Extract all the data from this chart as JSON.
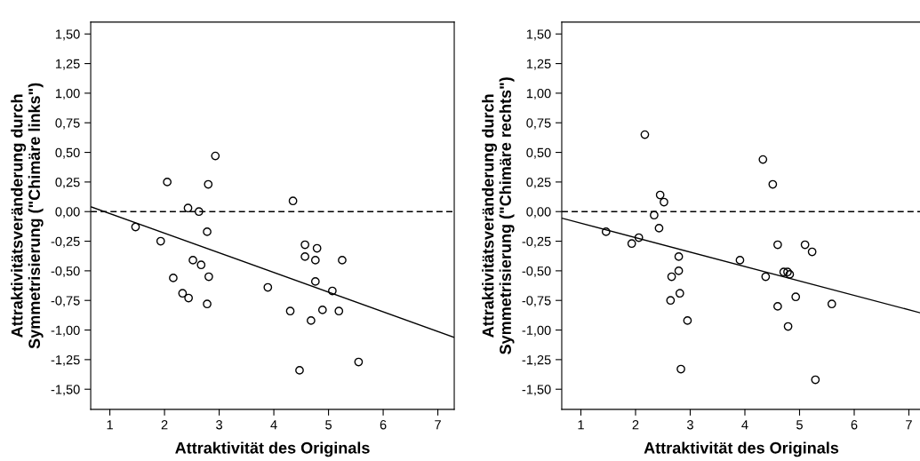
{
  "chart_data": [
    {
      "type": "scatter",
      "xlabel": "Attraktivität des Originals",
      "ylabel": "Attraktivitätsveränderung durch\nSymmetrisierung (\"Chimäre links\")",
      "xlim": [
        0.65,
        7.3
      ],
      "ylim": [
        -1.67,
        1.6
      ],
      "xticks": [
        1,
        2,
        3,
        4,
        5,
        6,
        7
      ],
      "yticks": [
        {
          "value": -1.5,
          "label": "-1,50"
        },
        {
          "value": -1.25,
          "label": "-1,25"
        },
        {
          "value": -1.0,
          "label": "-1,00"
        },
        {
          "value": -0.75,
          "label": "-0,75"
        },
        {
          "value": -0.5,
          "label": "-0,50"
        },
        {
          "value": -0.25,
          "label": "-0,25"
        },
        {
          "value": 0,
          "label": "0,00"
        },
        {
          "value": 0.25,
          "label": "0,25"
        },
        {
          "value": 0.5,
          "label": "0,50"
        },
        {
          "value": 0.75,
          "label": "0,75"
        },
        {
          "value": 1.0,
          "label": "1,00"
        },
        {
          "value": 1.25,
          "label": "1,25"
        },
        {
          "value": 1.5,
          "label": "1,50"
        }
      ],
      "ref_lines": [
        {
          "axis": "y",
          "value": 0,
          "line_style": "dashed",
          "color": "#000000"
        }
      ],
      "series": [
        {
          "color": "#000000",
          "marker": "circle",
          "x": [
            2.93,
            2.05,
            2.8,
            2.43,
            2.63,
            1.47,
            2.78,
            1.93,
            2.52,
            2.67,
            2.16,
            2.81,
            2.33,
            2.44,
            2.78,
            3.89,
            4.35,
            4.57,
            4.79,
            4.57,
            4.76,
            5.25,
            4.76,
            5.07,
            4.3,
            4.89,
            5.19,
            4.68,
            5.55,
            4.47
          ],
          "values": [
            0.47,
            0.25,
            0.23,
            0.03,
            0.0,
            -0.13,
            -0.17,
            -0.25,
            -0.41,
            -0.45,
            -0.56,
            -0.55,
            -0.69,
            -0.73,
            -0.78,
            -0.64,
            0.09,
            -0.28,
            -0.31,
            -0.38,
            -0.41,
            -0.41,
            -0.59,
            -0.67,
            -0.84,
            -0.83,
            -0.84,
            -0.92,
            -1.27,
            -1.34
          ]
        },
        {
          "type": "line",
          "color": "#000000",
          "x": [
            0.66,
            7.29
          ],
          "values": [
            0.04,
            -1.06
          ]
        }
      ]
    },
    {
      "type": "scatter",
      "xlabel": "Attraktivität des Originals",
      "ylabel": "Attraktivitätsveränderung durch\nSymmetrisierung (\"Chimäre rechts\")",
      "xlim": [
        0.65,
        7.22
      ],
      "ylim": [
        -1.67,
        1.6
      ],
      "xticks": [
        1,
        2,
        3,
        4,
        5,
        6,
        7
      ],
      "yticks": [
        {
          "value": -1.5,
          "label": "-1,50"
        },
        {
          "value": -1.25,
          "label": "-1,25"
        },
        {
          "value": -1.0,
          "label": "-1,00"
        },
        {
          "value": -0.75,
          "label": "-0,75"
        },
        {
          "value": -0.5,
          "label": "-0,50"
        },
        {
          "value": -0.25,
          "label": "-0,25"
        },
        {
          "value": 0,
          "label": "0,00"
        },
        {
          "value": 0.25,
          "label": "0,25"
        },
        {
          "value": 0.5,
          "label": "0,50"
        },
        {
          "value": 0.75,
          "label": "0,75"
        },
        {
          "value": 1.0,
          "label": "1,00"
        },
        {
          "value": 1.25,
          "label": "1,25"
        },
        {
          "value": 1.5,
          "label": "1,50"
        }
      ],
      "ref_lines": [
        {
          "axis": "y",
          "value": 0,
          "line_style": "dashed",
          "color": "#000000"
        }
      ],
      "series": [
        {
          "color": "#000000",
          "marker": "circle",
          "x": [
            2.17,
            2.45,
            2.52,
            2.34,
            2.43,
            1.46,
            1.93,
            2.06,
            2.79,
            2.79,
            2.66,
            2.81,
            2.64,
            2.95,
            2.83,
            4.33,
            4.51,
            4.6,
            5.1,
            5.23,
            3.91,
            4.38,
            4.71,
            4.78,
            4.82,
            4.93,
            4.6,
            5.59,
            4.79,
            5.29
          ],
          "values": [
            0.65,
            0.14,
            0.08,
            -0.03,
            -0.14,
            -0.17,
            -0.27,
            -0.22,
            -0.38,
            -0.5,
            -0.55,
            -0.69,
            -0.75,
            -0.92,
            -1.33,
            0.44,
            0.23,
            -0.28,
            -0.28,
            -0.34,
            -0.41,
            -0.55,
            -0.51,
            -0.51,
            -0.53,
            -0.72,
            -0.8,
            -0.78,
            -0.97,
            -1.42
          ]
        },
        {
          "type": "line",
          "color": "#000000",
          "x": [
            0.65,
            7.21
          ],
          "values": [
            -0.055,
            -0.855
          ]
        }
      ]
    }
  ]
}
